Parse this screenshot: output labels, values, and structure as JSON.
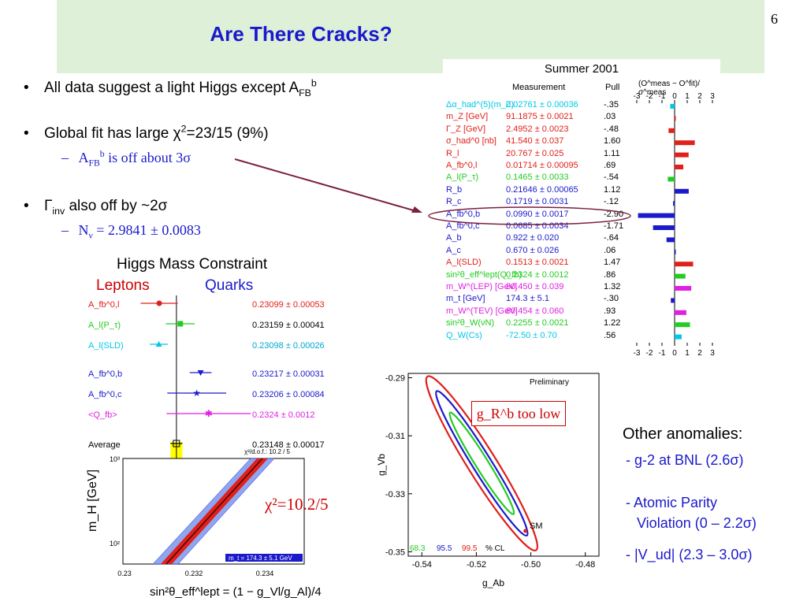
{
  "slide": {
    "title": "Are There Cracks?",
    "number": "6"
  },
  "bullets": [
    {
      "pre": "All data suggest a light Higgs except A",
      "sub": "FB",
      "sup": "b"
    },
    {
      "pre": "Global fit has large χ",
      "sup": "2",
      "post": "=23/15 (9%)"
    },
    {
      "pre": "Γ",
      "sub": "inv",
      "post": " also off by ~2σ"
    }
  ],
  "subbullets": [
    {
      "pre": "A",
      "sub": "FB",
      "sup": "b",
      "post": " is off about 3σ"
    },
    {
      "pre": "N",
      "sub": "ν",
      "post": " = 2.9841 ± 0.0083"
    }
  ],
  "higgs": {
    "title": "Higgs Mass Constraint",
    "leptons": "Leptons",
    "quarks": "Quarks",
    "chi2_label": "χ²=10.2/5",
    "ylabel": "m_H [GeV]",
    "xlabel": "sin²θ_eff^lept = (1 − g_Vl/g_Al)/4",
    "y_ticks": [
      "10³",
      "10²"
    ],
    "x_ticks": [
      "0.23",
      "0.232",
      "0.234"
    ],
    "chi2_dof": "χ²/d.o.f.: 10.2 / 5",
    "mt_note": "m_t = 174.3 ± 5.1 GeV"
  },
  "summer": {
    "title": "Summer 2001",
    "col_measurement": "Measurement",
    "col_pull": "Pull",
    "col_plot": "(O^meas − O^fit)/σ^meas",
    "axis_ticks": [
      "-3",
      "-2",
      "-1",
      "0",
      "1",
      "2",
      "3"
    ],
    "rows": [
      {
        "name": "Δα_had^(5)(m_Z)",
        "value": "0.02761 ± 0.00036",
        "pull": "-.35",
        "pull_val": -0.35,
        "color": "#00c8e6"
      },
      {
        "name": "m_Z [GeV]",
        "value": "91.1875 ± 0.0021",
        "pull": ".03",
        "pull_val": 0.03,
        "color": "#e0201a"
      },
      {
        "name": "Γ_Z [GeV]",
        "value": "2.4952 ± 0.0023",
        "pull": "-.48",
        "pull_val": -0.48,
        "color": "#e0201a"
      },
      {
        "name": "σ_had^0 [nb]",
        "value": "41.540 ± 0.037",
        "pull": "1.60",
        "pull_val": 1.6,
        "color": "#e0201a"
      },
      {
        "name": "R_l",
        "value": "20.767 ± 0.025",
        "pull": "1.11",
        "pull_val": 1.11,
        "color": "#e0201a"
      },
      {
        "name": "A_fb^0,l",
        "value": "0.01714 ± 0.00095",
        "pull": ".69",
        "pull_val": 0.69,
        "color": "#e0201a"
      },
      {
        "name": "A_l(P_τ)",
        "value": "0.1465 ± 0.0033",
        "pull": "-.54",
        "pull_val": -0.54,
        "color": "#22cc22"
      },
      {
        "name": "R_b",
        "value": "0.21646 ± 0.00065",
        "pull": "1.12",
        "pull_val": 1.12,
        "color": "#1a1acc"
      },
      {
        "name": "R_c",
        "value": "0.1719 ± 0.0031",
        "pull": "-.12",
        "pull_val": -0.12,
        "color": "#1a1acc"
      },
      {
        "name": "A_fb^0,b",
        "value": "0.0990 ± 0.0017",
        "pull": "-2.90",
        "pull_val": -2.9,
        "color": "#1a1acc"
      },
      {
        "name": "A_fb^0,c",
        "value": "0.0685 ± 0.0034",
        "pull": "-1.71",
        "pull_val": -1.71,
        "color": "#1a1acc"
      },
      {
        "name": "A_b",
        "value": "0.922 ± 0.020",
        "pull": "-.64",
        "pull_val": -0.64,
        "color": "#1a1acc"
      },
      {
        "name": "A_c",
        "value": "0.670 ± 0.026",
        "pull": ".06",
        "pull_val": 0.06,
        "color": "#1a1acc"
      },
      {
        "name": "A_l(SLD)",
        "value": "0.1513 ± 0.0021",
        "pull": "1.47",
        "pull_val": 1.47,
        "color": "#e0201a"
      },
      {
        "name": "sin²θ_eff^lept(Q_fb)",
        "value": "0.2324 ± 0.0012",
        "pull": ".86",
        "pull_val": 0.86,
        "color": "#22cc22"
      },
      {
        "name": "m_W^(LEP) [GeV]",
        "value": "80.450 ± 0.039",
        "pull": "1.32",
        "pull_val": 1.32,
        "color": "#e020e0"
      },
      {
        "name": "m_t [GeV]",
        "value": "174.3 ± 5.1",
        "pull": "-.30",
        "pull_val": -0.3,
        "color": "#1a1acc"
      },
      {
        "name": "m_W^(TEV) [GeV]",
        "value": "80.454 ± 0.060",
        "pull": ".93",
        "pull_val": 0.93,
        "color": "#e020e0"
      },
      {
        "name": "sin²θ_W(νN)",
        "value": "0.2255 ± 0.0021",
        "pull": "1.22",
        "pull_val": 1.22,
        "color": "#22cc22"
      },
      {
        "name": "Q_W(Cs)",
        "value": "-72.50 ± 0.70",
        "pull": ".56",
        "pull_val": 0.56,
        "color": "#00c8e6"
      }
    ]
  },
  "contour": {
    "preliminary": "Preliminary",
    "gr_label": "g_R^b too low",
    "sm_label": "SM",
    "cl_labels": [
      "68.3",
      "95.5",
      "99.5",
      "% CL"
    ],
    "cl_colors": [
      "#22cc22",
      "#1a1acc",
      "#e0201a"
    ],
    "ylabel": "g_Vb",
    "xlabel": "g_Ab",
    "y_ticks": [
      "-0.29",
      "-0.31",
      "-0.33",
      "-0.35"
    ],
    "x_ticks": [
      "-0.54",
      "-0.52",
      "-0.50",
      "-0.48"
    ]
  },
  "anomalies": {
    "title": "Other anomalies:",
    "items": [
      "- g-2 at BNL (2.6σ)",
      "- Atomic Parity",
      "Violation (0 – 2.2σ)",
      "- |V_ud| (2.3 – 3.0σ)"
    ]
  },
  "chart_data": [
    {
      "type": "scatter",
      "title": "Higgs Mass Constraint",
      "xlabel": "sin²θ_eff^lept = (1 − g_Vl/g_Al)/4",
      "ylabel": "m_H [GeV]",
      "series": [
        {
          "name": "A_fb^0,l",
          "value": 0.23099,
          "error": 0.00053,
          "label": "0.23099 ± 0.00053",
          "group": "Leptons",
          "color": "#e0201a",
          "marker": "circle"
        },
        {
          "name": "A_l(P_τ)",
          "value": 0.23159,
          "error": 0.00041,
          "label": "0.23159 ± 0.00041",
          "group": "Leptons",
          "color": "#22cc22",
          "marker": "square"
        },
        {
          "name": "A_l(SLD)",
          "value": 0.23098,
          "error": 0.00026,
          "label": "0.23098 ± 0.00026",
          "group": "Leptons",
          "color": "#00c8e6",
          "marker": "triangle"
        },
        {
          "name": "A_fb^0,b",
          "value": 0.23217,
          "error": 0.00031,
          "label": "0.23217 ± 0.00031",
          "group": "Quarks",
          "color": "#1a1acc",
          "marker": "triangle-down"
        },
        {
          "name": "A_fb^0,c",
          "value": 0.23206,
          "error": 0.00084,
          "label": "0.23206 ± 0.00084",
          "group": "Quarks",
          "color": "#1a1acc",
          "marker": "star"
        },
        {
          "name": "<Q_fb>",
          "value": 0.2324,
          "error": 0.0012,
          "label": "0.2324 ± 0.0012",
          "group": "Quarks",
          "color": "#e020e0",
          "marker": "asterisk"
        },
        {
          "name": "Average",
          "value": 0.23148,
          "error": 0.00017,
          "label": "0.23148 ± 0.00017",
          "group": "Average",
          "color": "#000000",
          "marker": "square-open"
        }
      ],
      "xlim": [
        0.23,
        0.235
      ],
      "ylim": [
        10,
        1000
      ],
      "y_scale": "log"
    },
    {
      "type": "bar",
      "title": "Summer 2001",
      "xlabel": "(O^meas − O^fit)/σ^meas",
      "categories": [
        "Δα_had^(5)(m_Z)",
        "m_Z",
        "Γ_Z",
        "σ_had^0",
        "R_l",
        "A_fb^0,l",
        "A_l(P_τ)",
        "R_b",
        "R_c",
        "A_fb^0,b",
        "A_fb^0,c",
        "A_b",
        "A_c",
        "A_l(SLD)",
        "sin²θ_eff^lept(Q_fb)",
        "m_W^(LEP)",
        "m_t",
        "m_W^(TEV)",
        "sin²θ_W(νN)",
        "Q_W(Cs)"
      ],
      "values": [
        -0.35,
        0.03,
        -0.48,
        1.6,
        1.11,
        0.69,
        -0.54,
        1.12,
        -0.12,
        -2.9,
        -1.71,
        -0.64,
        0.06,
        1.47,
        0.86,
        1.32,
        -0.3,
        0.93,
        1.22,
        0.56
      ],
      "xlim": [
        -3,
        3
      ],
      "orientation": "horizontal"
    },
    {
      "type": "scatter",
      "title": "",
      "xlabel": "g_Ab",
      "ylabel": "g_Vb",
      "xlim": [
        -0.54,
        -0.48
      ],
      "ylim": [
        -0.35,
        -0.29
      ],
      "series": [
        {
          "name": "SM",
          "x": [
            -0.502
          ],
          "y": [
            -0.3428
          ]
        }
      ],
      "contours": [
        "68.3",
        "95.5",
        "99.5"
      ]
    }
  ]
}
